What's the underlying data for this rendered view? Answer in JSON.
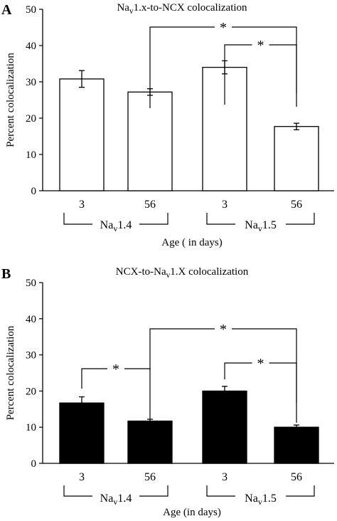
{
  "chart_data": [
    {
      "type": "bar",
      "panel": "A",
      "title": "Na",
      "title_sub": "v",
      "title_rest": "1.x-to-NCX colocalization",
      "ylabel": "Percent colocalization",
      "xlabel": "Age ( in days)",
      "ylim": [
        0,
        50
      ],
      "yticks": [
        "0",
        "10",
        "20",
        "30",
        "40",
        "50"
      ],
      "categories": [
        "3",
        "56",
        "3",
        "56"
      ],
      "values": [
        30.8,
        27.2,
        34.0,
        17.7
      ],
      "errors": [
        2.3,
        0.9,
        1.8,
        0.9
      ],
      "bar_fill": "#ffffff",
      "groups": [
        {
          "label": "Na",
          "sub": "v",
          "rest": "1.4"
        },
        {
          "label": "Na",
          "sub": "v",
          "rest": "1.5"
        }
      ],
      "significance": [
        {
          "from": 1,
          "to": 3,
          "label": "*"
        },
        {
          "from": 2,
          "to": 3,
          "label": "*"
        }
      ]
    },
    {
      "type": "bar",
      "panel": "B",
      "title": "NCX-to-Na",
      "title_sub": "v",
      "title_rest": "1.X colocalization",
      "ylabel": "Percent colocalization",
      "xlabel": "Age (in days)",
      "ylim": [
        0,
        50
      ],
      "yticks": [
        "0",
        "10",
        "20",
        "30",
        "40",
        "50"
      ],
      "categories": [
        "3",
        "56",
        "3",
        "56"
      ],
      "values": [
        16.7,
        11.7,
        20.0,
        10.0
      ],
      "errors": [
        1.7,
        0.5,
        1.3,
        0.6
      ],
      "bar_fill": "#000000",
      "groups": [
        {
          "label": "Na",
          "sub": "v",
          "rest": "1.4"
        },
        {
          "label": "Na",
          "sub": "v",
          "rest": "1.5"
        }
      ],
      "significance": [
        {
          "from": 0,
          "to": 1,
          "label": "*"
        },
        {
          "from": 1,
          "to": 3,
          "label": "*"
        },
        {
          "from": 2,
          "to": 3,
          "label": "*"
        }
      ]
    }
  ]
}
